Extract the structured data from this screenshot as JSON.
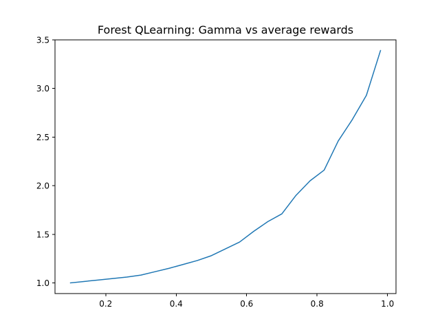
{
  "chart_data": {
    "type": "line",
    "title": "Forest QLearning: Gamma vs average rewards",
    "xlabel": "",
    "ylabel": "",
    "xlim": [
      0.056,
      1.024
    ],
    "ylim": [
      0.89,
      3.5
    ],
    "xticks": [
      0.2,
      0.4,
      0.6,
      0.8,
      1.0
    ],
    "xtick_labels": [
      "0.2",
      "0.4",
      "0.6",
      "0.8",
      "1.0"
    ],
    "yticks": [
      1.0,
      1.5,
      2.0,
      2.5,
      3.0,
      3.5
    ],
    "ytick_labels": [
      "1.0",
      "1.5",
      "2.0",
      "2.5",
      "3.0",
      "3.5"
    ],
    "grid": false,
    "legend": "none",
    "series": [
      {
        "name": "average rewards",
        "color": "#1f77b4",
        "x": [
          0.1,
          0.14,
          0.18,
          0.22,
          0.26,
          0.3,
          0.34,
          0.38,
          0.42,
          0.46,
          0.5,
          0.54,
          0.58,
          0.62,
          0.66,
          0.7,
          0.74,
          0.78,
          0.82,
          0.86,
          0.9,
          0.94,
          0.98
        ],
        "y": [
          1.0,
          1.015,
          1.03,
          1.045,
          1.06,
          1.08,
          1.115,
          1.15,
          1.19,
          1.23,
          1.28,
          1.35,
          1.42,
          1.53,
          1.63,
          1.71,
          1.9,
          2.05,
          2.16,
          2.46,
          2.68,
          2.93,
          3.39
        ]
      }
    ]
  }
}
